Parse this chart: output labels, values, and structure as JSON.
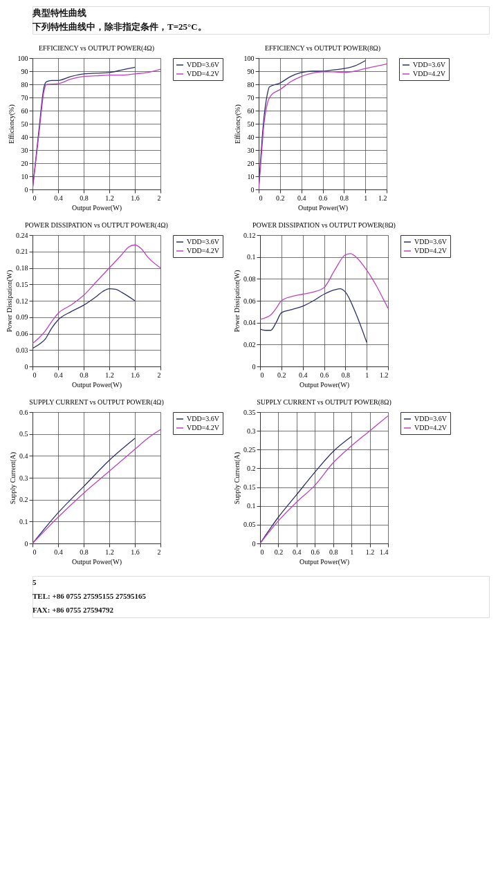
{
  "chart_data": [
    {
      "type": "line",
      "title": "EFFICIENCY vs OUTPUT POWER(4Ω)",
      "xlabel": "Output Power(W)",
      "ylabel": "Efficiency(%)",
      "xlim": [
        0,
        2
      ],
      "xticks": [
        0,
        0.4,
        0.8,
        1.2,
        1.6,
        2
      ],
      "ylim": [
        0,
        100
      ],
      "yticks": [
        0,
        10,
        20,
        30,
        40,
        50,
        60,
        70,
        80,
        90,
        100
      ],
      "grid": true,
      "legend": "right",
      "annotations": [
        "典型特性曲线",
        "下列特性曲线中，除非指定条件，T=25°C。"
      ],
      "series": [
        {
          "name": "VDD=3.6V",
          "color": "#2b2f6e",
          "x": [
            0,
            0.1,
            0.18,
            0.22,
            0.3,
            0.4,
            0.6,
            0.8,
            1.0,
            1.2,
            1.4,
            1.6
          ],
          "values": [
            0,
            45,
            78,
            82,
            83,
            83,
            86,
            88,
            88.5,
            89,
            91,
            93
          ]
        },
        {
          "name": "VDD=4.2V",
          "color": "#c040c0",
          "x": [
            0,
            0.1,
            0.18,
            0.22,
            0.4,
            0.6,
            0.8,
            1.0,
            1.2,
            1.4,
            1.6,
            1.8,
            2.0
          ],
          "values": [
            0,
            42,
            75,
            80,
            80.5,
            84,
            86,
            86.5,
            87,
            87,
            88,
            89,
            91.5
          ]
        }
      ]
    },
    {
      "type": "line",
      "title": "EFFICIENCY vs OUTPUT POWER(8Ω)",
      "xlabel": "Output Power(W)",
      "ylabel": "Efficiency(%)",
      "xlim": [
        0,
        1.2
      ],
      "xticks": [
        0,
        0.2,
        0.4,
        0.6,
        0.8,
        1,
        1.2
      ],
      "ylim": [
        0,
        100
      ],
      "yticks": [
        0,
        10,
        20,
        30,
        40,
        50,
        60,
        70,
        80,
        90,
        100
      ],
      "grid": true,
      "legend": "right",
      "series": [
        {
          "name": "VDD=3.6V",
          "color": "#2b2f6e",
          "x": [
            0,
            0.02,
            0.05,
            0.08,
            0.1,
            0.2,
            0.3,
            0.4,
            0.5,
            0.6,
            0.7,
            0.8,
            0.9,
            1.0
          ],
          "values": [
            0,
            25,
            55,
            72,
            78,
            81,
            86,
            89,
            90,
            90,
            91,
            92,
            94,
            98
          ]
        },
        {
          "name": "VDD=4.2V",
          "color": "#c040c0",
          "x": [
            0,
            0.02,
            0.05,
            0.08,
            0.12,
            0.2,
            0.3,
            0.4,
            0.5,
            0.6,
            0.7,
            0.8,
            0.9,
            1.0,
            1.2
          ],
          "values": [
            0,
            20,
            50,
            65,
            72,
            76,
            82,
            86,
            88.5,
            89.5,
            89.5,
            89,
            90,
            92,
            95.5
          ]
        }
      ]
    },
    {
      "type": "line",
      "title": "POWER DISSIPATION vs OUTPUT POWER(4Ω)",
      "xlabel": "Output Power(W)",
      "ylabel": "Power Dissipation(W)",
      "xlim": [
        0,
        2
      ],
      "xticks": [
        0,
        0.4,
        0.8,
        1.2,
        1.6,
        2
      ],
      "ylim": [
        0,
        0.24
      ],
      "yticks": [
        0,
        0.03,
        0.06,
        0.09,
        0.12,
        0.15,
        0.18,
        0.21,
        0.24
      ],
      "grid": true,
      "legend": "right",
      "series": [
        {
          "name": "VDD=3.6V",
          "color": "#2b2f6e",
          "x": [
            0,
            0.1,
            0.2,
            0.3,
            0.4,
            0.6,
            0.8,
            1.0,
            1.1,
            1.2,
            1.3,
            1.4,
            1.6
          ],
          "values": [
            0.033,
            0.04,
            0.05,
            0.07,
            0.085,
            0.1,
            0.112,
            0.128,
            0.137,
            0.142,
            0.141,
            0.135,
            0.12
          ]
        },
        {
          "name": "VDD=4.2V",
          "color": "#c040c0",
          "x": [
            0,
            0.1,
            0.2,
            0.3,
            0.4,
            0.6,
            0.8,
            1.0,
            1.2,
            1.4,
            1.5,
            1.6,
            1.7,
            1.8,
            2.0
          ],
          "values": [
            0.042,
            0.052,
            0.065,
            0.082,
            0.097,
            0.112,
            0.13,
            0.155,
            0.18,
            0.205,
            0.218,
            0.222,
            0.215,
            0.2,
            0.18
          ]
        }
      ]
    },
    {
      "type": "line",
      "title": "POWER DISSIPATION vs OUTPUT POWER(8Ω)",
      "xlabel": "Output Power(W)",
      "ylabel": "Power Dissipation(W)",
      "xlim": [
        0,
        1.2
      ],
      "xticks": [
        0,
        0.2,
        0.4,
        0.6,
        0.8,
        1,
        1.2
      ],
      "ylim": [
        0,
        0.12
      ],
      "yticks": [
        0,
        0.02,
        0.04,
        0.06,
        0.08,
        0.1,
        0.12
      ],
      "grid": true,
      "legend": "right",
      "series": [
        {
          "name": "VDD=3.6V",
          "color": "#2b2f6e",
          "x": [
            0,
            0.05,
            0.1,
            0.15,
            0.2,
            0.3,
            0.4,
            0.5,
            0.6,
            0.7,
            0.75,
            0.8,
            0.9,
            1.0
          ],
          "values": [
            0.034,
            0.033,
            0.033,
            0.04,
            0.049,
            0.052,
            0.055,
            0.06,
            0.066,
            0.07,
            0.071,
            0.068,
            0.048,
            0.022
          ]
        },
        {
          "name": "VDD=4.2V",
          "color": "#c040c0",
          "x": [
            0,
            0.1,
            0.15,
            0.2,
            0.3,
            0.4,
            0.5,
            0.6,
            0.7,
            0.8,
            0.85,
            0.9,
            1.0,
            1.1,
            1.2
          ],
          "values": [
            0.043,
            0.047,
            0.053,
            0.06,
            0.064,
            0.066,
            0.068,
            0.072,
            0.088,
            0.102,
            0.103,
            0.1,
            0.088,
            0.072,
            0.053
          ]
        }
      ]
    },
    {
      "type": "line",
      "title": "SUPPLY CURRENT vs OUTPUT POWER(4Ω)",
      "xlabel": "Output Power(W)",
      "ylabel": "Supply Current(A)",
      "xlim": [
        0,
        2
      ],
      "xticks": [
        0,
        0.4,
        0.8,
        1.2,
        1.6,
        2
      ],
      "ylim": [
        0,
        0.6
      ],
      "yticks": [
        0,
        0.1,
        0.2,
        0.3,
        0.4,
        0.5,
        0.6
      ],
      "grid": true,
      "legend": "right",
      "series": [
        {
          "name": "VDD=3.6V",
          "color": "#2b2f6e",
          "x": [
            0,
            0.4,
            0.8,
            1.2,
            1.6
          ],
          "values": [
            0,
            0.14,
            0.26,
            0.38,
            0.48
          ]
        },
        {
          "name": "VDD=4.2V",
          "color": "#c040c0",
          "x": [
            0,
            0.4,
            0.8,
            1.2,
            1.6,
            1.8,
            2.0
          ],
          "values": [
            0,
            0.12,
            0.23,
            0.33,
            0.43,
            0.48,
            0.52
          ]
        }
      ]
    },
    {
      "type": "line",
      "title": "SUPPLY CURRENT vs OUTPUT POWER(8Ω)",
      "xlabel": "Output Power(W)",
      "ylabel": "Supply Current(A)",
      "xlim": [
        0,
        1.4
      ],
      "xticks": [
        0,
        0.2,
        0.4,
        0.6,
        0.8,
        1,
        1.2,
        1.4
      ],
      "ylim": [
        0,
        0.35
      ],
      "yticks": [
        0,
        0.05,
        0.1,
        0.15,
        0.2,
        0.25,
        0.3,
        0.35
      ],
      "grid": true,
      "legend": "right",
      "annotations": [
        "5",
        "TEL: +86 0755 27595155 27595165",
        "FAX: +86 0755 27594792"
      ],
      "series": [
        {
          "name": "VDD=3.6V",
          "color": "#2b2f6e",
          "x": [
            0,
            0.2,
            0.4,
            0.6,
            0.8,
            1.0
          ],
          "values": [
            0,
            0.07,
            0.13,
            0.19,
            0.245,
            0.285
          ]
        },
        {
          "name": "VDD=4.2V",
          "color": "#c040c0",
          "x": [
            0,
            0.2,
            0.4,
            0.6,
            0.8,
            1.0,
            1.2,
            1.4
          ],
          "values": [
            0,
            0.06,
            0.11,
            0.155,
            0.215,
            0.26,
            0.3,
            0.34
          ]
        }
      ]
    }
  ]
}
